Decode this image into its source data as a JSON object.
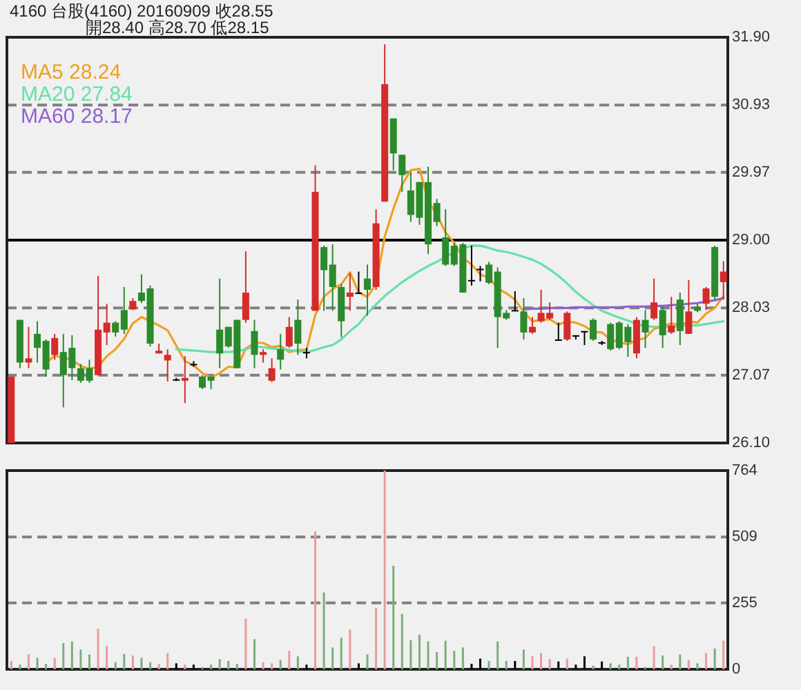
{
  "chart_data": [
    {
      "type": "candlestick",
      "title": "4160  台股(4160) 20160909  收28.55",
      "subtitle": "開28.40    高28.70    低28.15",
      "categories": [
        null,
        null,
        null,
        null,
        null,
        null,
        null,
        null,
        null,
        null,
        null,
        null,
        null,
        null,
        null,
        null,
        null,
        null,
        null,
        null,
        null,
        null,
        null,
        null,
        null,
        null,
        null,
        null,
        null,
        null,
        null,
        null,
        null,
        null,
        null,
        null,
        null,
        null,
        null,
        null,
        null,
        null,
        null,
        null,
        null,
        null,
        null,
        null,
        null,
        null,
        null,
        null,
        null,
        null,
        null,
        null,
        null,
        null,
        null,
        null,
        null,
        null,
        null,
        null,
        null,
        null,
        null,
        null,
        null,
        null,
        null,
        null,
        null,
        null,
        null,
        null,
        null,
        null,
        null,
        null,
        null,
        null,
        null
      ],
      "ohlc": [
        [
          26.1,
          27.05,
          26.1,
          27.05
        ],
        [
          27.86,
          27.86,
          27.17,
          27.25
        ],
        [
          27.25,
          27.76,
          27.17,
          27.31
        ],
        [
          27.66,
          27.84,
          27.25,
          27.46
        ],
        [
          27.56,
          27.58,
          27.05,
          27.15
        ],
        [
          27.36,
          27.66,
          27.29,
          27.6
        ],
        [
          27.4,
          27.66,
          26.61,
          27.07
        ],
        [
          27.46,
          27.64,
          27.0,
          27.17
        ],
        [
          27.17,
          27.23,
          26.96,
          26.99
        ],
        [
          27.17,
          27.29,
          26.96,
          26.99
        ],
        [
          27.07,
          28.49,
          27.07,
          27.72
        ],
        [
          27.68,
          28.09,
          27.5,
          27.82
        ],
        [
          27.82,
          27.84,
          27.62,
          27.68
        ],
        [
          28.0,
          28.33,
          27.66,
          27.72
        ],
        [
          28.01,
          28.17,
          28.0,
          28.13
        ],
        [
          28.25,
          28.51,
          28.1,
          28.13
        ],
        [
          28.31,
          28.35,
          27.48,
          27.52
        ],
        [
          27.38,
          27.52,
          27.38,
          27.42
        ],
        [
          27.28,
          27.44,
          26.98,
          27.36
        ],
        [
          27.01,
          27.03,
          26.99,
          27.01
        ],
        [
          26.99,
          27.34,
          26.67,
          27.03
        ],
        [
          27.23,
          27.27,
          27.19,
          27.23
        ],
        [
          27.05,
          27.07,
          26.87,
          26.89
        ],
        [
          27.05,
          27.05,
          26.87,
          26.99
        ],
        [
          27.72,
          28.45,
          27.17,
          27.38
        ],
        [
          27.76,
          27.76,
          27.46,
          27.48
        ],
        [
          27.86,
          27.86,
          27.17,
          27.17
        ],
        [
          27.86,
          28.84,
          27.82,
          28.25
        ],
        [
          27.7,
          27.86,
          27.17,
          27.36
        ],
        [
          27.36,
          27.44,
          27.25,
          27.4
        ],
        [
          26.99,
          27.31,
          26.97,
          27.17
        ],
        [
          27.44,
          27.66,
          27.15,
          27.29
        ],
        [
          27.48,
          27.9,
          27.46,
          27.76
        ],
        [
          27.86,
          28.15,
          27.36,
          27.52
        ],
        [
          27.4,
          27.46,
          27.31,
          27.4
        ],
        [
          27.99,
          30.07,
          27.99,
          29.69
        ],
        [
          28.9,
          28.92,
          27.99,
          28.57
        ],
        [
          28.65,
          28.94,
          27.99,
          28.33
        ],
        [
          28.33,
          28.37,
          27.61,
          27.84
        ],
        [
          28.19,
          28.53,
          27.99,
          28.25
        ],
        [
          28.25,
          28.55,
          28.23,
          28.25
        ],
        [
          28.45,
          28.65,
          27.92,
          28.29
        ],
        [
          28.33,
          29.44,
          28.29,
          29.24
        ],
        [
          29.55,
          31.8,
          29.55,
          31.23
        ],
        [
          30.74,
          30.74,
          30.0,
          30.24
        ],
        [
          30.22,
          30.22,
          29.69,
          29.93
        ],
        [
          29.71,
          29.97,
          29.26,
          29.36
        ],
        [
          29.83,
          29.83,
          29.22,
          29.32
        ],
        [
          29.83,
          30.05,
          28.8,
          28.94
        ],
        [
          29.53,
          29.59,
          29.2,
          29.26
        ],
        [
          29.04,
          29.44,
          28.63,
          28.65
        ],
        [
          28.92,
          28.96,
          28.63,
          28.65
        ],
        [
          28.94,
          28.96,
          28.25,
          28.25
        ],
        [
          28.43,
          28.92,
          28.35,
          28.43
        ],
        [
          28.59,
          28.63,
          28.41,
          28.59
        ],
        [
          28.65,
          28.69,
          28.37,
          28.39
        ],
        [
          28.55,
          28.61,
          27.46,
          27.9
        ],
        [
          27.96,
          28.0,
          27.86,
          27.88
        ],
        [
          28.0,
          28.27,
          27.99,
          28.0
        ],
        [
          27.98,
          28.17,
          27.58,
          27.68
        ],
        [
          27.68,
          27.9,
          27.66,
          27.76
        ],
        [
          27.84,
          28.29,
          27.82,
          27.96
        ],
        [
          27.88,
          28.11,
          27.86,
          27.96
        ],
        [
          27.58,
          27.82,
          27.56,
          27.58
        ],
        [
          27.58,
          27.98,
          27.56,
          27.96
        ],
        [
          27.64,
          27.64,
          27.58,
          27.64
        ],
        [
          27.7,
          27.7,
          27.5,
          27.7
        ],
        [
          27.86,
          27.88,
          27.56,
          27.58
        ],
        [
          27.54,
          27.56,
          27.5,
          27.54
        ],
        [
          27.8,
          27.82,
          27.42,
          27.44
        ],
        [
          27.82,
          27.84,
          27.44,
          27.46
        ],
        [
          27.76,
          27.8,
          27.33,
          27.54
        ],
        [
          27.38,
          27.9,
          27.31,
          27.86
        ],
        [
          27.86,
          28.0,
          27.46,
          27.68
        ],
        [
          27.88,
          28.45,
          27.86,
          28.11
        ],
        [
          28.0,
          28.05,
          27.46,
          27.64
        ],
        [
          27.68,
          28.19,
          27.66,
          27.78
        ],
        [
          28.15,
          28.25,
          27.5,
          27.7
        ],
        [
          27.66,
          28.43,
          27.66,
          27.98
        ],
        [
          28.05,
          28.09,
          27.97,
          27.99
        ],
        [
          28.09,
          28.33,
          28.0,
          28.31
        ],
        [
          28.9,
          28.92,
          28.15,
          28.19
        ],
        [
          28.4,
          28.7,
          28.15,
          28.55
        ]
      ],
      "colors": [
        "#d62b2b",
        "#2b8a2b",
        "#d62b2b",
        "#2b8a2b",
        "#2b8a2b",
        "#d62b2b",
        "#2b8a2b",
        "#2b8a2b",
        "#2b8a2b",
        "#2b8a2b",
        "#d62b2b",
        "#d62b2b",
        "#2b8a2b",
        "#2b8a2b",
        "#d62b2b",
        "#2b8a2b",
        "#2b8a2b",
        "#d62b2b",
        "#d62b2b",
        "#000000",
        "#d62b2b",
        "#000000",
        "#2b8a2b",
        "#2b8a2b",
        "#2b8a2b",
        "#2b8a2b",
        "#2b8a2b",
        "#d62b2b",
        "#2b8a2b",
        "#d62b2b",
        "#d62b2b",
        "#2b8a2b",
        "#d62b2b",
        "#2b8a2b",
        "#000000",
        "#d62b2b",
        "#2b8a2b",
        "#2b8a2b",
        "#2b8a2b",
        "#d62b2b",
        "#000000",
        "#2b8a2b",
        "#d62b2b",
        "#d62b2b",
        "#2b8a2b",
        "#2b8a2b",
        "#2b8a2b",
        "#2b8a2b",
        "#2b8a2b",
        "#2b8a2b",
        "#2b8a2b",
        "#2b8a2b",
        "#2b8a2b",
        "#000000",
        "#000000",
        "#2b8a2b",
        "#2b8a2b",
        "#2b8a2b",
        "#000000",
        "#2b8a2b",
        "#d62b2b",
        "#d62b2b",
        "#d62b2b",
        "#000000",
        "#d62b2b",
        "#000000",
        "#000000",
        "#2b8a2b",
        "#000000",
        "#2b8a2b",
        "#2b8a2b",
        "#2b8a2b",
        "#d62b2b",
        "#2b8a2b",
        "#d62b2b",
        "#2b8a2b",
        "#d62b2b",
        "#2b8a2b",
        "#d62b2b",
        "#2b8a2b",
        "#d62b2b",
        "#2b8a2b",
        "#d62b2b"
      ],
      "series": [
        {
          "type": "line",
          "name": "MA5 28.24",
          "color": "#f0a020",
          "values": [
            null,
            null,
            null,
            null,
            27.24,
            27.35,
            27.32,
            27.29,
            27.2,
            27.16,
            27.19,
            27.34,
            27.44,
            27.59,
            27.81,
            27.9,
            27.84,
            27.78,
            27.71,
            27.49,
            27.27,
            27.21,
            27.1,
            27.03,
            27.1,
            27.19,
            27.18,
            27.45,
            27.53,
            27.53,
            27.47,
            27.49,
            27.4,
            27.43,
            27.43,
            27.93,
            28.19,
            28.3,
            28.37,
            28.54,
            28.25,
            28.19,
            28.37,
            29.05,
            29.45,
            29.79,
            30.0,
            30.02,
            29.56,
            29.36,
            29.11,
            28.96,
            28.75,
            28.65,
            28.51,
            28.46,
            28.31,
            28.24,
            28.15,
            27.97,
            27.84,
            27.86,
            27.87,
            27.79,
            27.84,
            27.82,
            27.77,
            27.69,
            27.68,
            27.58,
            27.54,
            27.51,
            27.57,
            27.6,
            27.73,
            27.77,
            27.81,
            27.78,
            27.84,
            27.82,
            27.95,
            28.03,
            28.2
          ]
        },
        {
          "type": "line",
          "name": "MA20 27.84",
          "color": "#66e0a8",
          "values": [
            null,
            null,
            null,
            null,
            null,
            null,
            null,
            null,
            null,
            null,
            null,
            null,
            null,
            null,
            null,
            null,
            null,
            null,
            null,
            27.44,
            27.43,
            27.42,
            27.41,
            27.4,
            27.4,
            27.4,
            27.41,
            27.44,
            27.48,
            27.47,
            27.45,
            27.44,
            27.43,
            27.41,
            27.4,
            27.43,
            27.47,
            27.5,
            27.58,
            27.7,
            27.8,
            27.95,
            28.08,
            28.2,
            28.3,
            28.4,
            28.48,
            28.56,
            28.63,
            28.69,
            28.76,
            28.83,
            28.88,
            28.92,
            28.92,
            28.89,
            28.85,
            28.83,
            28.8,
            28.76,
            28.72,
            28.66,
            28.58,
            28.49,
            28.38,
            28.26,
            28.16,
            28.07,
            27.99,
            27.94,
            27.89,
            27.85,
            27.8,
            27.77,
            27.76,
            27.76,
            27.76,
            27.77,
            27.78,
            27.78,
            27.8,
            27.82,
            27.84
          ]
        },
        {
          "type": "line",
          "name": "MA60 28.17",
          "color": "#9060d0",
          "values": [
            null,
            null,
            null,
            null,
            null,
            null,
            null,
            null,
            null,
            null,
            null,
            null,
            null,
            null,
            null,
            null,
            null,
            null,
            null,
            null,
            null,
            null,
            null,
            null,
            null,
            null,
            null,
            null,
            null,
            null,
            null,
            null,
            null,
            null,
            null,
            null,
            null,
            null,
            null,
            null,
            null,
            null,
            null,
            null,
            null,
            null,
            null,
            null,
            null,
            null,
            null,
            null,
            null,
            null,
            null,
            null,
            null,
            null,
            null,
            28.01,
            28.02,
            28.02,
            28.03,
            28.03,
            28.03,
            28.04,
            28.04,
            28.04,
            28.04,
            28.04,
            28.04,
            28.05,
            28.05,
            28.05,
            28.06,
            28.06,
            28.07,
            28.08,
            28.09,
            28.1,
            28.12,
            28.14,
            28.17
          ]
        }
      ],
      "ylim": [
        26.1,
        31.9
      ],
      "yticks": [
        {
          "value": 26.1,
          "label": "26.10"
        },
        {
          "value": 27.07,
          "label": "27.07"
        },
        {
          "value": 28.03,
          "label": "28.03"
        },
        {
          "value": 29.0,
          "label": "29.00"
        },
        {
          "value": 29.97,
          "label": "29.97"
        },
        {
          "value": 30.93,
          "label": "30.93"
        },
        {
          "value": 31.9,
          "label": "31.90"
        }
      ],
      "grid": "y",
      "ref_lines": [
        {
          "axis": "y",
          "value": 29.0,
          "color": "#000000",
          "line_style": "solid"
        }
      ],
      "legend": "top left",
      "tick_labels": "y"
    },
    {
      "type": "bar",
      "categories": [
        null,
        null,
        null,
        null,
        null,
        null,
        null,
        null,
        null,
        null,
        null,
        null,
        null,
        null,
        null,
        null,
        null,
        null,
        null,
        null,
        null,
        null,
        null,
        null,
        null,
        null,
        null,
        null,
        null,
        null,
        null,
        null,
        null,
        null,
        null,
        null,
        null,
        null,
        null,
        null,
        null,
        null,
        null,
        null,
        null,
        null,
        null,
        null,
        null,
        null,
        null,
        null,
        null,
        null,
        null,
        null,
        null,
        null,
        null,
        null,
        null,
        null,
        null,
        null,
        null,
        null,
        null,
        null,
        null,
        null,
        null,
        null,
        null,
        null,
        null,
        null,
        null,
        null,
        null,
        null,
        null,
        null,
        null
      ],
      "values": [
        32,
        18,
        57,
        44,
        21,
        44,
        101,
        107,
        76,
        57,
        156,
        89,
        27,
        59,
        53,
        44,
        27,
        21,
        62,
        23,
        18,
        18,
        9,
        18,
        39,
        32,
        21,
        195,
        116,
        27,
        23,
        36,
        71,
        50,
        18,
        530,
        295,
        84,
        121,
        153,
        23,
        57,
        236,
        764,
        398,
        213,
        112,
        133,
        107,
        66,
        110,
        71,
        84,
        21,
        41,
        32,
        107,
        32,
        32,
        76,
        50,
        62,
        39,
        30,
        41,
        18,
        50,
        14,
        30,
        23,
        18,
        48,
        48,
        9,
        89,
        53,
        18,
        57,
        36,
        23,
        62,
        80,
        110
      ],
      "colors": [
        "#e89a9a",
        "#7aae7a",
        "#e89a9a",
        "#7aae7a",
        "#7aae7a",
        "#e89a9a",
        "#7aae7a",
        "#7aae7a",
        "#7aae7a",
        "#7aae7a",
        "#e89a9a",
        "#e89a9a",
        "#7aae7a",
        "#7aae7a",
        "#e89a9a",
        "#7aae7a",
        "#7aae7a",
        "#e89a9a",
        "#e89a9a",
        "#000000",
        "#e89a9a",
        "#000000",
        "#7aae7a",
        "#7aae7a",
        "#7aae7a",
        "#7aae7a",
        "#7aae7a",
        "#e89a9a",
        "#7aae7a",
        "#e89a9a",
        "#e89a9a",
        "#7aae7a",
        "#e89a9a",
        "#7aae7a",
        "#000000",
        "#e89a9a",
        "#7aae7a",
        "#7aae7a",
        "#7aae7a",
        "#e89a9a",
        "#000000",
        "#7aae7a",
        "#e89a9a",
        "#e89a9a",
        "#7aae7a",
        "#7aae7a",
        "#7aae7a",
        "#7aae7a",
        "#7aae7a",
        "#7aae7a",
        "#7aae7a",
        "#7aae7a",
        "#7aae7a",
        "#000000",
        "#000000",
        "#7aae7a",
        "#7aae7a",
        "#7aae7a",
        "#000000",
        "#7aae7a",
        "#e89a9a",
        "#e89a9a",
        "#e89a9a",
        "#000000",
        "#e89a9a",
        "#000000",
        "#000000",
        "#7aae7a",
        "#000000",
        "#7aae7a",
        "#7aae7a",
        "#7aae7a",
        "#e89a9a",
        "#7aae7a",
        "#e89a9a",
        "#7aae7a",
        "#e89a9a",
        "#7aae7a",
        "#e89a9a",
        "#7aae7a",
        "#e89a9a",
        "#7aae7a",
        "#e89a9a"
      ],
      "ylim": [
        0,
        764
      ],
      "yticks": [
        0,
        255,
        509,
        764
      ],
      "grid": "y",
      "tick_labels": "y"
    }
  ]
}
